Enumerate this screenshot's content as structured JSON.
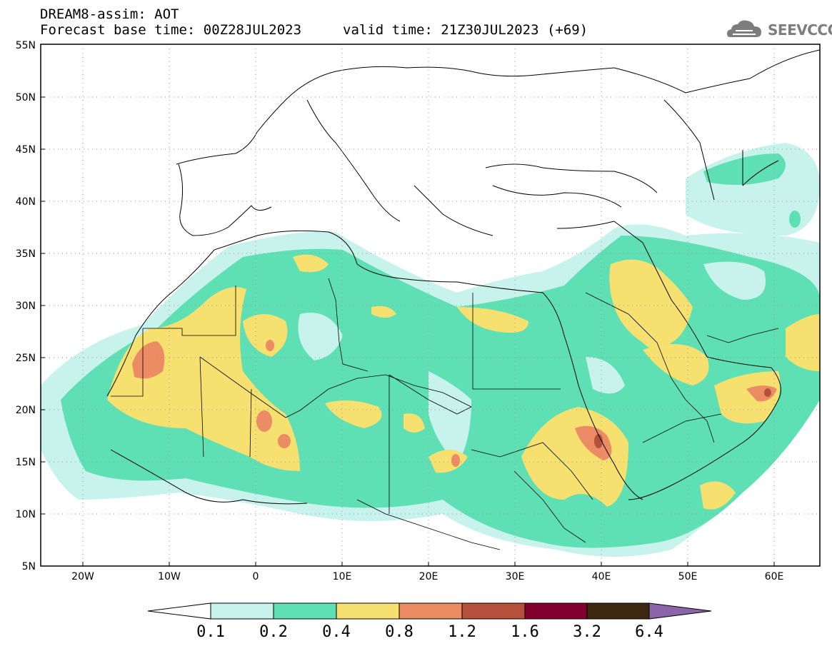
{
  "header": {
    "line1": "DREAM8-assim: AOT",
    "line2": "Forecast base time: 00Z28JUL2023",
    "line3": "valid time: 21Z30JUL2023 (+69)"
  },
  "logo": {
    "text": "SEEVCCC",
    "icon": "cloud-icon"
  },
  "map": {
    "lon_range": [
      -25,
      65
    ],
    "lat_range": [
      5,
      55
    ],
    "y_ticks": [
      "5N",
      "10N",
      "15N",
      "20N",
      "25N",
      "30N",
      "35N",
      "40N",
      "45N",
      "50N",
      "55N"
    ],
    "x_ticks": [
      "20W",
      "10W",
      "0",
      "10E",
      "20E",
      "30E",
      "40E",
      "50E",
      "60E"
    ],
    "grid": "dotted"
  },
  "colorbar": {
    "labels": [
      "0.1",
      "0.2",
      "0.4",
      "0.8",
      "1.2",
      "1.6",
      "3.2",
      "6.4"
    ],
    "colors": [
      "#c8f2ec",
      "#5fe0b4",
      "#f5e070",
      "#ec8c64",
      "#b4503c",
      "#82002d",
      "#3c280f",
      "#8c64aa"
    ]
  }
}
